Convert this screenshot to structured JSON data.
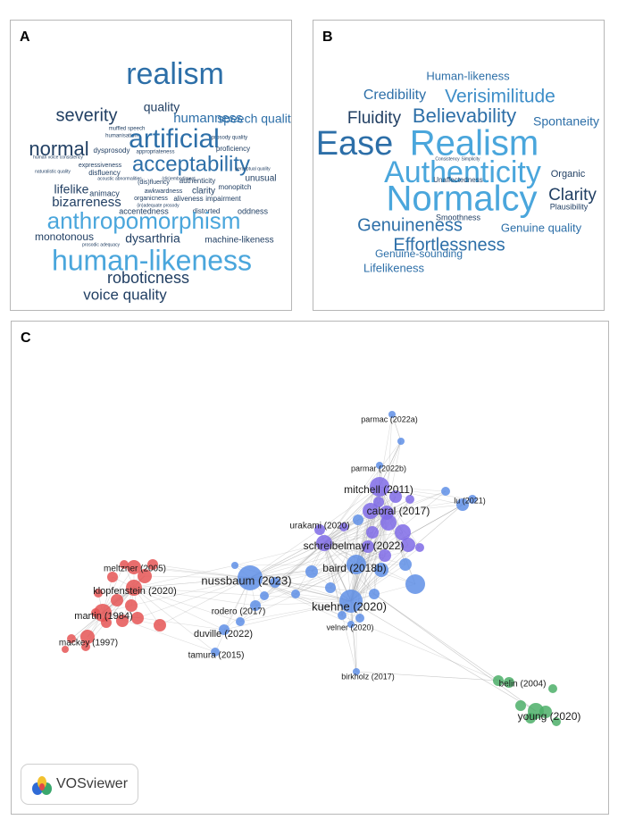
{
  "panels": {
    "a": {
      "letter": "A",
      "words": [
        {
          "text": "realism",
          "size": 34,
          "color": "#2d6fa8"
        },
        {
          "text": "quality",
          "size": 14,
          "color": "#213f63"
        },
        {
          "text": "severity",
          "size": 20,
          "color": "#213f63"
        },
        {
          "text": "humanness",
          "size": 15,
          "color": "#2d6fa8"
        },
        {
          "text": "speech quality",
          "size": 14,
          "color": "#2d6fa8"
        },
        {
          "text": "muffled speech",
          "size": 6,
          "color": "#213f63"
        },
        {
          "text": "humanisation",
          "size": 6,
          "color": "#213f63"
        },
        {
          "text": "prosody quality",
          "size": 6,
          "color": "#213f63"
        },
        {
          "text": "artificial",
          "size": 30,
          "color": "#2d6fa8"
        },
        {
          "text": "normal",
          "size": 22,
          "color": "#213f63"
        },
        {
          "text": "dysprosody",
          "size": 8,
          "color": "#213f63"
        },
        {
          "text": "appropriateness",
          "size": 6,
          "color": "#213f63"
        },
        {
          "text": "proficiency",
          "size": 8,
          "color": "#213f63"
        },
        {
          "text": "human voice consistency",
          "size": 5,
          "color": "#213f63"
        },
        {
          "text": "expressiveness",
          "size": 7,
          "color": "#213f63"
        },
        {
          "text": "acceptability",
          "size": 24,
          "color": "#2d6fa8"
        },
        {
          "text": "naturalistic quality",
          "size": 5,
          "color": "#213f63"
        },
        {
          "text": "disfluency",
          "size": 8,
          "color": "#213f63"
        },
        {
          "text": "perceptual quality",
          "size": 5,
          "color": "#213f63"
        },
        {
          "text": "acoustic abnormalities",
          "size": 5,
          "color": "#213f63"
        },
        {
          "text": "(dis)embodiment",
          "size": 5,
          "color": "#213f63"
        },
        {
          "text": "(dis)fluency",
          "size": 7,
          "color": "#213f63"
        },
        {
          "text": "authenticity",
          "size": 8,
          "color": "#213f63"
        },
        {
          "text": "monopitch",
          "size": 8,
          "color": "#213f63"
        },
        {
          "text": "unusual",
          "size": 10,
          "color": "#213f63"
        },
        {
          "text": "lifelike",
          "size": 14,
          "color": "#213f63"
        },
        {
          "text": "animacy",
          "size": 9,
          "color": "#213f63"
        },
        {
          "text": "awkwardness",
          "size": 7,
          "color": "#213f63"
        },
        {
          "text": "clarity",
          "size": 10,
          "color": "#213f63"
        },
        {
          "text": "organicness",
          "size": 7,
          "color": "#213f63"
        },
        {
          "text": "aliveness",
          "size": 8,
          "color": "#213f63"
        },
        {
          "text": "impairment",
          "size": 8,
          "color": "#213f63"
        },
        {
          "text": "bizarreness",
          "size": 15,
          "color": "#213f63"
        },
        {
          "text": "(in)adequate prosody",
          "size": 5,
          "color": "#213f63"
        },
        {
          "text": "accentedness",
          "size": 9,
          "color": "#213f63"
        },
        {
          "text": "distorted",
          "size": 8,
          "color": "#213f63"
        },
        {
          "text": "oddness",
          "size": 9,
          "color": "#213f63"
        },
        {
          "text": "anthropomorphism",
          "size": 26,
          "color": "#4aa6dc"
        },
        {
          "text": "monotonous",
          "size": 12,
          "color": "#213f63"
        },
        {
          "text": "prosodic adequacy",
          "size": 5,
          "color": "#213f63"
        },
        {
          "text": "dysarthria",
          "size": 14,
          "color": "#213f63"
        },
        {
          "text": "machine-likeness",
          "size": 10,
          "color": "#213f63"
        },
        {
          "text": "human-likeness",
          "size": 32,
          "color": "#4aa6dc"
        },
        {
          "text": "roboticness",
          "size": 18,
          "color": "#213f63"
        },
        {
          "text": "voice quality",
          "size": 17,
          "color": "#213f63"
        }
      ]
    },
    "b": {
      "letter": "B",
      "words": [
        {
          "text": "Human-likeness",
          "size": 13,
          "color": "#2d6fa8"
        },
        {
          "text": "Credibility",
          "size": 16,
          "color": "#2d6fa8"
        },
        {
          "text": "Verisimilitude",
          "size": 21,
          "color": "#3e8ec8"
        },
        {
          "text": "Fluidity",
          "size": 19,
          "color": "#213f63"
        },
        {
          "text": "Believability",
          "size": 22,
          "color": "#2d6fa8"
        },
        {
          "text": "Spontaneity",
          "size": 14,
          "color": "#2d6fa8"
        },
        {
          "text": "Ease",
          "size": 38,
          "color": "#2d6fa8"
        },
        {
          "text": "Realism",
          "size": 40,
          "color": "#4aa6dc"
        },
        {
          "text": "Consistency",
          "size": 5,
          "color": "#213f63"
        },
        {
          "text": "Simplicity",
          "size": 5,
          "color": "#213f63"
        },
        {
          "text": "Authenticity",
          "size": 34,
          "color": "#4aa6dc"
        },
        {
          "text": "Organic",
          "size": 11,
          "color": "#213f63"
        },
        {
          "text": "Unaffectedness",
          "size": 8,
          "color": "#213f63"
        },
        {
          "text": "Normalcy",
          "size": 40,
          "color": "#4aa6dc"
        },
        {
          "text": "Clarity",
          "size": 19,
          "color": "#213f63"
        },
        {
          "text": "Plausibility",
          "size": 9,
          "color": "#213f63"
        },
        {
          "text": "Smoothness",
          "size": 9,
          "color": "#213f63"
        },
        {
          "text": "Genuineness",
          "size": 20,
          "color": "#2d6fa8"
        },
        {
          "text": "Genuine quality",
          "size": 13,
          "color": "#2d6fa8"
        },
        {
          "text": "Effortlessness",
          "size": 20,
          "color": "#2d6fa8"
        },
        {
          "text": "Genuine-sounding",
          "size": 12,
          "color": "#2d6fa8"
        },
        {
          "text": "Lifelikeness",
          "size": 13,
          "color": "#2d6fa8"
        }
      ]
    },
    "c": {
      "letter": "C",
      "badge_text": "VOSviewer",
      "clusters": {
        "blue": "#5f8fe6",
        "purple": "#7f6be6",
        "red": "#e55555",
        "green": "#4caf68"
      },
      "labeled_nodes": [
        {
          "label": "parmac (2022a)",
          "cluster": "blue"
        },
        {
          "label": "parmar (2022b)",
          "cluster": "blue"
        },
        {
          "label": "mitchell (2011)",
          "cluster": "purple"
        },
        {
          "label": "lu (2021)",
          "cluster": "blue"
        },
        {
          "label": "cabral (2017)",
          "cluster": "purple"
        },
        {
          "label": "urakami (2020)",
          "cluster": "purple"
        },
        {
          "label": "schreibelmayr (2022)",
          "cluster": "purple"
        },
        {
          "label": "meltzner (2005)",
          "cluster": "red"
        },
        {
          "label": "baird (2018b)",
          "cluster": "blue"
        },
        {
          "label": "nussbaum (2023)",
          "cluster": "blue"
        },
        {
          "label": "klopfenstein (2020)",
          "cluster": "red"
        },
        {
          "label": "kuehne (2020)",
          "cluster": "blue"
        },
        {
          "label": "rodero (2017)",
          "cluster": "blue"
        },
        {
          "label": "martin (1984)",
          "cluster": "red"
        },
        {
          "label": "velner (2020)",
          "cluster": "blue"
        },
        {
          "label": "duville (2022)",
          "cluster": "blue"
        },
        {
          "label": "mackey (1997)",
          "cluster": "red"
        },
        {
          "label": "tamura (2015)",
          "cluster": "blue"
        },
        {
          "label": "birkholz (2017)",
          "cluster": "blue"
        },
        {
          "label": "belin (2004)",
          "cluster": "green"
        },
        {
          "label": "young (2020)",
          "cluster": "green"
        }
      ]
    }
  }
}
